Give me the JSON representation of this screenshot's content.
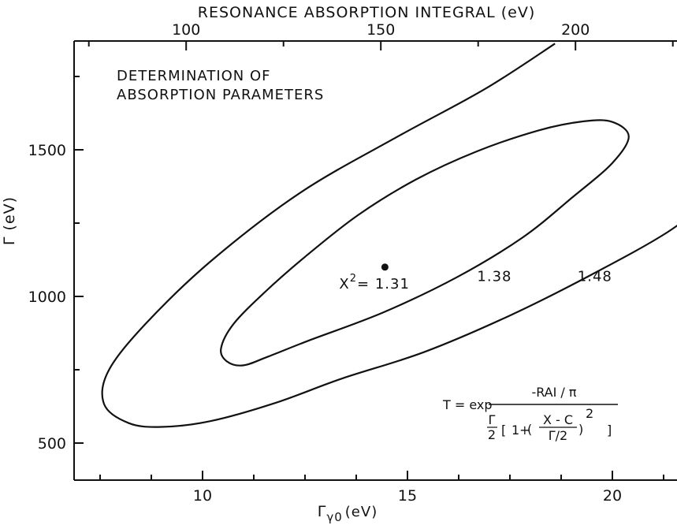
{
  "chart_data": {
    "type": "contour",
    "title": "DETERMINATION OF ABSORPTION PARAMETERS",
    "title_lines": [
      "DETERMINATION OF",
      "ABSORPTION PARAMETERS"
    ],
    "xlabel": "Γγ0 (eV)",
    "xlabel_base": "Γ",
    "xlabel_sub": "γ0",
    "xlabel_unit": "(eV)",
    "ylabel": "Γ (eV)",
    "top_xlabel": "RESONANCE ABSORPTION INTEGRAL (eV)",
    "xlim": [
      6.7,
      22.5
    ],
    "ylim": [
      380,
      1900
    ],
    "x_ticks": [
      10,
      15,
      20
    ],
    "x_tick_labels": [
      "10",
      "15",
      "20"
    ],
    "x_minor_ticks": [
      7.5,
      8.75,
      11.25,
      12.5,
      13.75,
      16.25,
      17.5,
      18.75,
      21.25
    ],
    "y_ticks": [
      500,
      1000,
      1500
    ],
    "y_tick_labels": [
      "500",
      "1000",
      "1500"
    ],
    "y_minor_ticks": [
      750,
      1250,
      1750
    ],
    "top_ticks": [
      100,
      150,
      200
    ],
    "top_tick_labels": [
      "100",
      "150",
      "200"
    ],
    "top_axis_map": {
      "rai": [
        100,
        150,
        200
      ],
      "x": [
        9.6,
        14.35,
        19.1
      ]
    },
    "best_fit": {
      "x": 14.45,
      "y": 1100,
      "chi2_label": "X",
      "chi2_sup": "2",
      "chi2_value": "= 1.31"
    },
    "contours": [
      {
        "level": "1.38",
        "label": "1.38",
        "label_at": {
          "x": 16.7,
          "y": 1052
        },
        "closed": true,
        "points": [
          [
            10.45,
            822
          ],
          [
            10.75,
            905
          ],
          [
            11.5,
            1012
          ],
          [
            12.5,
            1135
          ],
          [
            13.8,
            1278
          ],
          [
            15.2,
            1398
          ],
          [
            16.7,
            1495
          ],
          [
            18.2,
            1566
          ],
          [
            19.3,
            1597
          ],
          [
            20.0,
            1595
          ],
          [
            20.4,
            1545
          ],
          [
            20.0,
            1455
          ],
          [
            19.0,
            1335
          ],
          [
            17.8,
            1200
          ],
          [
            16.2,
            1065
          ],
          [
            14.4,
            945
          ],
          [
            12.6,
            850
          ],
          [
            11.6,
            795
          ],
          [
            11.0,
            765
          ],
          [
            10.6,
            778
          ]
        ]
      },
      {
        "level": "1.48",
        "label": "1.48",
        "label_at": {
          "x": 19.15,
          "y": 1052
        },
        "closed": false,
        "points": [
          [
            22.5,
            1340
          ],
          [
            21.3,
            1215
          ],
          [
            19.5,
            1075
          ],
          [
            17.5,
            935
          ],
          [
            15.4,
            810
          ],
          [
            13.4,
            720
          ],
          [
            11.8,
            638
          ],
          [
            10.2,
            575
          ],
          [
            9.0,
            555
          ],
          [
            8.2,
            568
          ],
          [
            7.6,
            632
          ],
          [
            7.7,
            745
          ],
          [
            8.6,
            905
          ],
          [
            10.2,
            1120
          ],
          [
            12.4,
            1355
          ],
          [
            14.8,
            1548
          ],
          [
            16.9,
            1708
          ],
          [
            18.6,
            1862
          ]
        ]
      }
    ],
    "formula": {
      "lhs": "T = exp",
      "numerator": "-RAI / π",
      "denominator_left": "Γ",
      "denominator_left_under": "2",
      "bracket_open": "[",
      "one_plus": "1+",
      "paren_open": "(",
      "frac_num": "X - C",
      "frac_den": "Γ/2",
      "paren_close": ")",
      "exponent": "2",
      "bracket_close": "]"
    }
  }
}
